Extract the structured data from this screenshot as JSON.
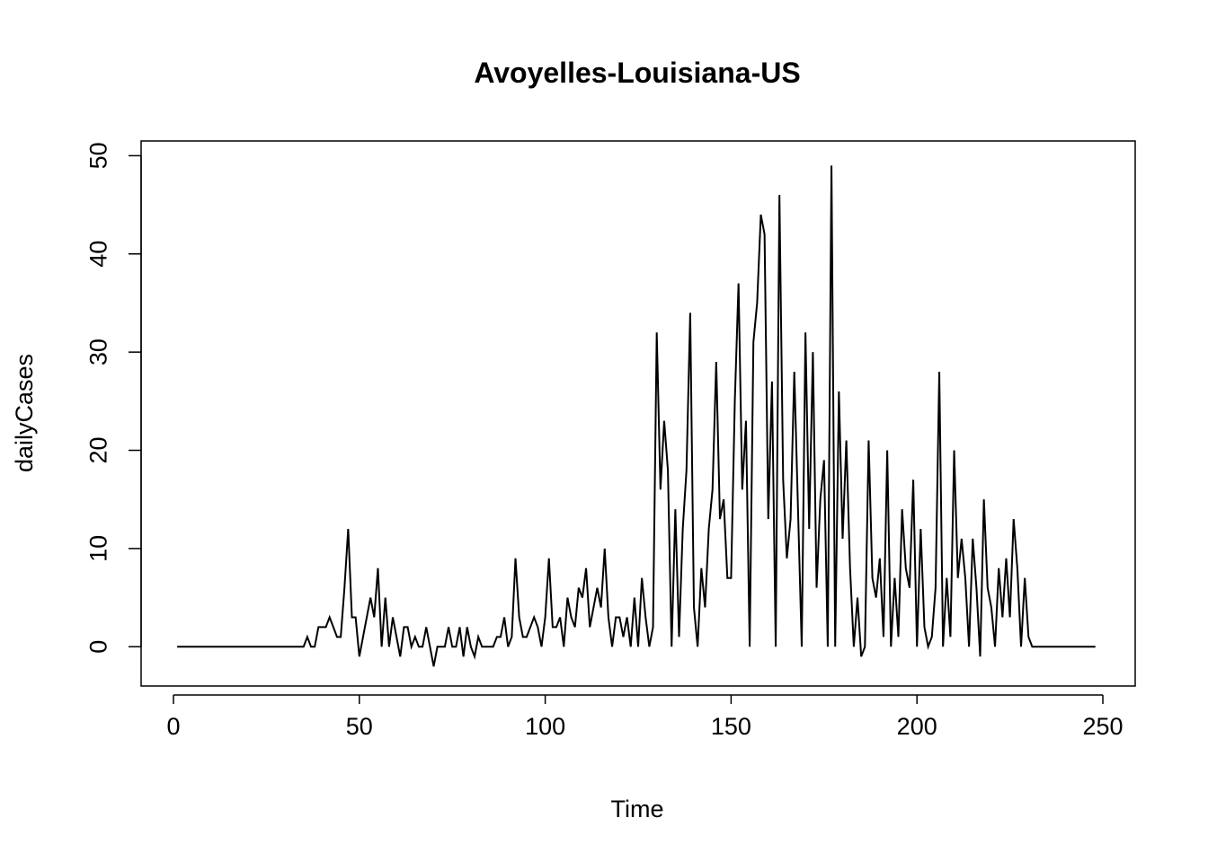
{
  "chart_data": {
    "type": "line",
    "title": "Avoyelles-Louisiana-US",
    "xlabel": "Time",
    "ylabel": "dailyCases",
    "xlim": [
      -8.7,
      258.7
    ],
    "ylim": [
      -4,
      51.5
    ],
    "xticks": [
      0,
      50,
      100,
      150,
      200,
      250
    ],
    "yticks": [
      0,
      10,
      20,
      30,
      40,
      50
    ],
    "grid": false,
    "legend": "none",
    "line_color": "#000000",
    "x_start": 1,
    "series": [
      {
        "values": [
          0,
          0,
          0,
          0,
          0,
          0,
          0,
          0,
          0,
          0,
          0,
          0,
          0,
          0,
          0,
          0,
          0,
          0,
          0,
          0,
          0,
          0,
          0,
          0,
          0,
          0,
          0,
          0,
          0,
          0,
          0,
          0,
          0,
          0,
          0,
          1,
          0,
          0,
          2,
          2,
          2,
          3,
          2,
          1,
          1,
          6,
          12,
          3,
          3,
          -1,
          1,
          3,
          5,
          3,
          8,
          0,
          5,
          0,
          3,
          1,
          -1,
          2,
          2,
          0,
          1,
          0,
          0,
          2,
          0,
          -2,
          0,
          0,
          0,
          2,
          0,
          0,
          2,
          -1,
          2,
          0,
          -1,
          1,
          0,
          0,
          0,
          0,
          1,
          1,
          3,
          0,
          1,
          9,
          3,
          1,
          1,
          2,
          3,
          2,
          0,
          3,
          9,
          2,
          2,
          3,
          0,
          5,
          3,
          2,
          6,
          5,
          8,
          2,
          4,
          6,
          4,
          10,
          3,
          0,
          3,
          3,
          1,
          3,
          0,
          5,
          0,
          7,
          3,
          0,
          2,
          32,
          16,
          23,
          18,
          0,
          14,
          1,
          12,
          18,
          34,
          4,
          0,
          8,
          4,
          12,
          16,
          29,
          13,
          15,
          7,
          7,
          25,
          37,
          16,
          23,
          0,
          31,
          35,
          44,
          42,
          13,
          27,
          0,
          46,
          17,
          9,
          13,
          28,
          14,
          0,
          32,
          12,
          30,
          6,
          15,
          19,
          0,
          49,
          0,
          26,
          11,
          21,
          8,
          0,
          5,
          -1,
          0,
          21,
          7,
          5,
          9,
          1,
          20,
          0,
          7,
          1,
          14,
          8,
          6,
          17,
          0,
          12,
          2,
          0,
          1,
          6,
          28,
          0,
          7,
          1,
          20,
          7,
          11,
          7,
          0,
          11,
          6,
          -1,
          15,
          6,
          4,
          0,
          8,
          3,
          9,
          3,
          13,
          8,
          0,
          7,
          1,
          0,
          0,
          0,
          0,
          0,
          0,
          0,
          0,
          0,
          0,
          0,
          0,
          0,
          0,
          0,
          0,
          0,
          0
        ]
      }
    ]
  }
}
